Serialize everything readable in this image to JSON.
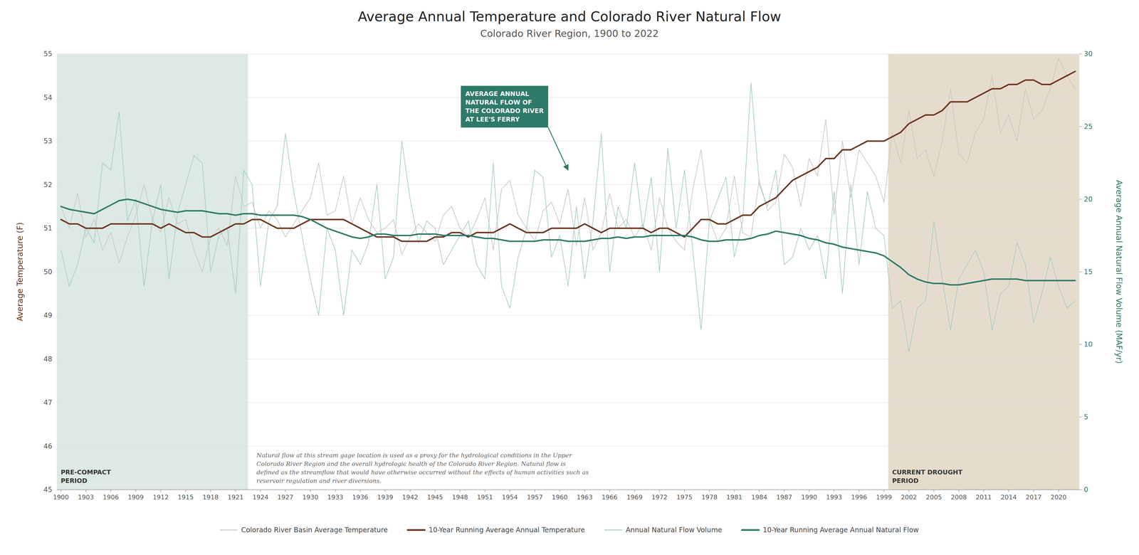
{
  "chart_data": {
    "type": "line",
    "title": "Average Annual Temperature and Colorado River Natural Flow",
    "subtitle": "Colorado River Region, 1900 to 2022",
    "ylabel": "Average Temperature (F)",
    "y2label": "Average Annual Natural Flow Volume (MAF/yr)",
    "x": [
      1900,
      1901,
      1902,
      1903,
      1904,
      1905,
      1906,
      1907,
      1908,
      1909,
      1910,
      1911,
      1912,
      1913,
      1914,
      1915,
      1916,
      1917,
      1918,
      1919,
      1920,
      1921,
      1922,
      1923,
      1924,
      1925,
      1926,
      1927,
      1928,
      1929,
      1930,
      1931,
      1932,
      1933,
      1934,
      1935,
      1936,
      1937,
      1938,
      1939,
      1940,
      1941,
      1942,
      1943,
      1944,
      1945,
      1946,
      1947,
      1948,
      1949,
      1950,
      1951,
      1952,
      1953,
      1954,
      1955,
      1956,
      1957,
      1958,
      1959,
      1960,
      1961,
      1962,
      1963,
      1964,
      1965,
      1966,
      1967,
      1968,
      1969,
      1970,
      1971,
      1972,
      1973,
      1974,
      1975,
      1976,
      1977,
      1978,
      1979,
      1980,
      1981,
      1982,
      1983,
      1984,
      1985,
      1986,
      1987,
      1988,
      1989,
      1990,
      1991,
      1992,
      1993,
      1994,
      1995,
      1996,
      1997,
      1998,
      1999,
      2000,
      2001,
      2002,
      2003,
      2004,
      2005,
      2006,
      2007,
      2008,
      2009,
      2010,
      2011,
      2012,
      2013,
      2014,
      2015,
      2016,
      2017,
      2018,
      2019,
      2020,
      2021,
      2022
    ],
    "xlim": [
      1899.5,
      2022.5
    ],
    "xticks": [
      1900,
      1903,
      1906,
      1909,
      1912,
      1915,
      1918,
      1921,
      1924,
      1927,
      1930,
      1933,
      1936,
      1939,
      1942,
      1945,
      1948,
      1951,
      1954,
      1957,
      1960,
      1963,
      1966,
      1969,
      1972,
      1975,
      1978,
      1981,
      1984,
      1987,
      1990,
      1993,
      1996,
      1999,
      2002,
      2005,
      2008,
      2011,
      2014,
      2017,
      2020
    ],
    "ylim": [
      45,
      55
    ],
    "yticks": [
      45,
      46,
      47,
      48,
      49,
      50,
      51,
      52,
      53,
      54,
      55
    ],
    "y2lim": [
      0,
      30
    ],
    "y2ticks": [
      0,
      5,
      10,
      15,
      20,
      25,
      30
    ],
    "grid": true,
    "legend": "bottom",
    "series": [
      {
        "name": "Colorado River Basin Average Temperature",
        "color": "#c8c8be",
        "values": [
          51.5,
          51.0,
          51.8,
          50.8,
          51.2,
          50.5,
          50.9,
          50.2,
          50.8,
          51.3,
          52.0,
          51.2,
          50.9,
          51.7,
          51.1,
          51.2,
          50.5,
          50.0,
          50.8,
          51.0,
          50.6,
          52.2,
          51.5,
          51.6,
          51.0,
          51.4,
          51.2,
          50.8,
          51.1,
          51.4,
          51.7,
          52.5,
          51.3,
          51.4,
          52.2,
          51.1,
          51.7,
          51.2,
          50.9,
          51.0,
          51.2,
          50.4,
          50.8,
          51.1,
          50.9,
          50.7,
          51.3,
          51.5,
          51.0,
          50.8,
          51.2,
          51.7,
          50.5,
          51.9,
          52.1,
          51.3,
          51.0,
          50.7,
          51.4,
          51.6,
          51.1,
          51.9,
          50.6,
          51.7,
          50.5,
          50.9,
          51.8,
          51.0,
          51.2,
          50.8,
          51.1,
          50.5,
          51.7,
          51.0,
          50.7,
          50.5,
          51.9,
          52.8,
          51.2,
          50.7,
          51.0,
          52.2,
          50.9,
          50.8,
          52.1,
          51.4,
          51.6,
          52.7,
          52.4,
          51.5,
          52.6,
          52.2,
          53.5,
          51.3,
          53.0,
          51.7,
          52.8,
          52.5,
          52.2,
          51.6,
          53.2,
          52.5,
          53.7,
          52.6,
          52.8,
          52.2,
          53.0,
          54.2,
          52.7,
          52.5,
          53.2,
          53.5,
          54.5,
          53.2,
          53.6,
          53.0,
          54.2,
          53.5,
          53.7,
          54.2,
          54.9,
          54.5,
          54.2
        ]
      },
      {
        "name": "10-Year Running Average Annual Temperature",
        "color": "#6b3520",
        "values": [
          51.2,
          51.1,
          51.1,
          51.0,
          51.0,
          51.0,
          51.1,
          51.1,
          51.1,
          51.1,
          51.1,
          51.1,
          51.0,
          51.1,
          51.0,
          50.9,
          50.9,
          50.8,
          50.8,
          50.9,
          51.0,
          51.1,
          51.1,
          51.2,
          51.2,
          51.1,
          51.0,
          51.0,
          51.0,
          51.1,
          51.2,
          51.2,
          51.2,
          51.2,
          51.2,
          51.1,
          51.0,
          50.9,
          50.8,
          50.8,
          50.8,
          50.7,
          50.7,
          50.7,
          50.7,
          50.8,
          50.8,
          50.9,
          50.9,
          50.8,
          50.9,
          50.9,
          50.9,
          51.0,
          51.1,
          51.0,
          50.9,
          50.9,
          50.9,
          51.0,
          51.0,
          51.0,
          51.0,
          51.1,
          51.0,
          50.9,
          51.0,
          51.0,
          51.0,
          51.0,
          51.0,
          50.9,
          51.0,
          51.0,
          50.9,
          50.8,
          51.0,
          51.2,
          51.2,
          51.1,
          51.1,
          51.2,
          51.3,
          51.3,
          51.5,
          51.6,
          51.7,
          51.9,
          52.1,
          52.2,
          52.3,
          52.4,
          52.6,
          52.6,
          52.8,
          52.8,
          52.9,
          53.0,
          53.0,
          53.0,
          53.1,
          53.2,
          53.4,
          53.5,
          53.6,
          53.6,
          53.7,
          53.9,
          53.9,
          53.9,
          54.0,
          54.1,
          54.2,
          54.2,
          54.3,
          54.3,
          54.4,
          54.4,
          54.3,
          54.3,
          54.4,
          54.5,
          54.6
        ]
      },
      {
        "name": "Annual Natural Flow Volume",
        "color": "#a8ccc4",
        "axis": "y2",
        "values": [
          16.5,
          14.0,
          15.5,
          18.0,
          17.0,
          22.5,
          22.0,
          26.0,
          18.5,
          20.0,
          14.0,
          18.5,
          21.0,
          14.5,
          19.0,
          21.0,
          23.0,
          22.5,
          15.0,
          17.5,
          18.0,
          13.5,
          22.0,
          21.0,
          14.0,
          18.5,
          19.5,
          24.5,
          20.5,
          17.5,
          14.5,
          12.0,
          18.0,
          16.5,
          12.0,
          16.5,
          15.5,
          17.0,
          21.0,
          14.5,
          16.0,
          24.0,
          20.0,
          17.0,
          18.5,
          18.0,
          15.5,
          16.5,
          17.5,
          18.5,
          15.5,
          14.5,
          22.5,
          14.0,
          12.5,
          16.0,
          18.0,
          22.0,
          21.5,
          16.0,
          17.5,
          14.0,
          19.5,
          14.5,
          18.5,
          24.5,
          15.0,
          19.5,
          18.0,
          22.5,
          18.0,
          21.5,
          15.0,
          23.5,
          18.0,
          22.0,
          16.5,
          11.0,
          18.5,
          20.0,
          21.5,
          16.0,
          18.5,
          28.0,
          21.0,
          19.5,
          22.0,
          15.5,
          16.0,
          18.0,
          16.5,
          17.5,
          14.5,
          20.5,
          13.5,
          21.0,
          15.5,
          20.5,
          18.0,
          17.5,
          12.5,
          13.0,
          9.5,
          12.5,
          13.0,
          18.5,
          14.5,
          11.0,
          14.5,
          15.5,
          16.5,
          15.0,
          11.0,
          13.5,
          14.0,
          17.0,
          15.5,
          11.5,
          13.5,
          16.0,
          14.0,
          12.5,
          13.0
        ]
      },
      {
        "name": "10-Year Running Average Annual Natural Flow",
        "color": "#2e7a68",
        "axis": "y2",
        "values": [
          19.5,
          19.3,
          19.2,
          19.1,
          19.0,
          19.3,
          19.6,
          19.9,
          20.0,
          19.9,
          19.7,
          19.5,
          19.3,
          19.2,
          19.1,
          19.2,
          19.2,
          19.2,
          19.1,
          19.0,
          19.0,
          18.9,
          19.0,
          19.0,
          18.9,
          18.9,
          18.9,
          18.9,
          18.9,
          18.8,
          18.6,
          18.3,
          18.0,
          17.8,
          17.6,
          17.4,
          17.3,
          17.4,
          17.6,
          17.6,
          17.5,
          17.5,
          17.5,
          17.6,
          17.6,
          17.6,
          17.5,
          17.5,
          17.5,
          17.5,
          17.4,
          17.3,
          17.3,
          17.2,
          17.1,
          17.1,
          17.1,
          17.1,
          17.2,
          17.2,
          17.2,
          17.1,
          17.1,
          17.1,
          17.2,
          17.3,
          17.3,
          17.4,
          17.3,
          17.4,
          17.4,
          17.5,
          17.5,
          17.5,
          17.5,
          17.5,
          17.4,
          17.2,
          17.1,
          17.1,
          17.2,
          17.2,
          17.2,
          17.3,
          17.5,
          17.6,
          17.8,
          17.7,
          17.6,
          17.5,
          17.3,
          17.2,
          17.0,
          16.9,
          16.7,
          16.6,
          16.5,
          16.4,
          16.3,
          16.1,
          15.7,
          15.3,
          14.8,
          14.5,
          14.3,
          14.2,
          14.2,
          14.1,
          14.1,
          14.2,
          14.3,
          14.4,
          14.5,
          14.5,
          14.5,
          14.5,
          14.4,
          14.4,
          14.4,
          14.4,
          14.4,
          14.4,
          14.4
        ]
      }
    ],
    "shaded_periods": [
      {
        "label": "PRE-COMPACT\nPERIOD",
        "start": 1900,
        "end": 1922,
        "color": "#a8c8bc"
      },
      {
        "label": "CURRENT DROUGHT\nPERIOD",
        "start": 2000,
        "end": 2022,
        "color": "#c0a882"
      }
    ],
    "annotations": [
      {
        "text": "AVERAGE ANNUAL\nNATURAL FLOW OF\nTHE COLORADO RIVER\nAT LEE'S FERRY",
        "x": 1961,
        "y": 22.0,
        "axis": "y2"
      }
    ],
    "footnote": "Natural flow at this stream gage location is used as a proxy for the hydrological conditions in the Upper\nColorado River Region and the overall hydrologic health of the Colorado River Region. Natural flow is\ndefined as the streamflow that would have otherwise occurred without the effects of human activities such as\nreservoir regulation and river diversions."
  }
}
